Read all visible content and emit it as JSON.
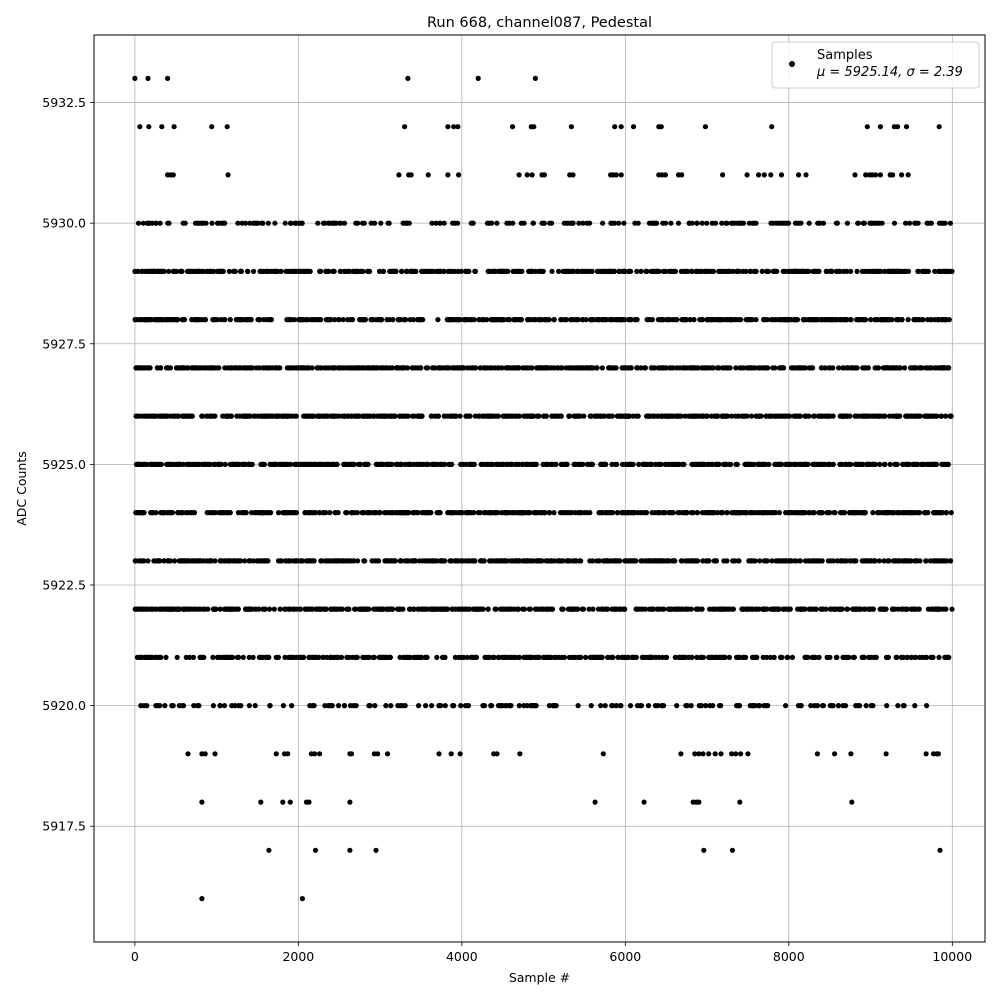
{
  "chart_data": {
    "type": "scatter",
    "title": "Run 668, channel087, Pedestal",
    "xlabel": "Sample #",
    "ylabel": "ADC Counts",
    "xlim": [
      -500,
      10400
    ],
    "ylim": [
      5915.1,
      5933.9
    ],
    "xticks": [
      0,
      2000,
      4000,
      6000,
      8000,
      10000
    ],
    "yticks": [
      5917.5,
      5920.0,
      5922.5,
      5925.0,
      5927.5,
      5930.0,
      5932.5
    ],
    "xtick_labels": [
      "0",
      "2000",
      "4000",
      "6000",
      "8000",
      "10000"
    ],
    "ytick_labels": [
      "5917.5",
      "5920.0",
      "5922.5",
      "5925.0",
      "5927.5",
      "5930.0",
      "5932.5"
    ],
    "grid": true,
    "legend": {
      "placement": "top-right",
      "series_name": "Samples",
      "stats_text": "μ = 5925.14, σ = 2.39"
    },
    "series": [
      {
        "name": "Samples",
        "color": "#000000",
        "n_samples": 10000,
        "mean": 5925.14,
        "std": 2.39,
        "levels": [
          5916,
          5917,
          5918,
          5919,
          5920,
          5921,
          5922,
          5923,
          5924,
          5925,
          5926,
          5927,
          5928,
          5929,
          5930,
          5931,
          5932,
          5933
        ],
        "sparse_points": [
          {
            "y": 5933,
            "x": [
              0,
              160,
              400,
              3340,
              4200,
              4900
            ]
          },
          {
            "y": 5932,
            "x": [
              60,
              170,
              330,
              480,
              940,
              1130,
              3300,
              3830,
              3900,
              3950,
              4620,
              4850,
              4880,
              5340,
              5870,
              5950,
              6100,
              6410,
              6440,
              6980,
              7790,
              8960,
              9120,
              9290,
              9330,
              9440,
              9840
            ]
          },
          {
            "y": 5931,
            "x": [
              400,
              440,
              470,
              1140,
              3230,
              3350,
              3380,
              3590,
              3830,
              3960,
              4700,
              4800,
              4860,
              4980,
              5010,
              5320,
              5360,
              5820,
              5850,
              5890,
              5950,
              6410,
              6450,
              6490,
              6650,
              6690,
              7190,
              7490,
              7630,
              7700,
              7780,
              7910,
              8120,
              8210,
              8810,
              8940,
              8990,
              9020,
              9060,
              9120,
              9240,
              9270,
              9380,
              9460
            ]
          },
          {
            "y": 5919,
            "x": [
              650,
              820,
              860,
              980,
              1730,
              1830,
              1870,
              2160,
              2200,
              2260,
              2630,
              2650,
              2930,
              2970,
              3090,
              3720,
              3870,
              3980,
              4390,
              4430,
              4710,
              5730,
              6680,
              6850,
              6900,
              6950,
              7020,
              7100,
              7170,
              7300,
              7350,
              7410,
              7500,
              8350,
              8560,
              8760,
              9190,
              9680,
              9770,
              9810,
              9830
            ]
          },
          {
            "y": 5918,
            "x": [
              820,
              1540,
              1810,
              1900,
              2100,
              2130,
              2630,
              5630,
              6230,
              6830,
              6870,
              6900,
              7400,
              8770
            ]
          },
          {
            "y": 5917,
            "x": [
              1640,
              2210,
              2630,
              2950,
              6960,
              7310,
              9850
            ]
          },
          {
            "y": 5916,
            "x": [
              820,
              2050
            ]
          }
        ]
      }
    ]
  }
}
